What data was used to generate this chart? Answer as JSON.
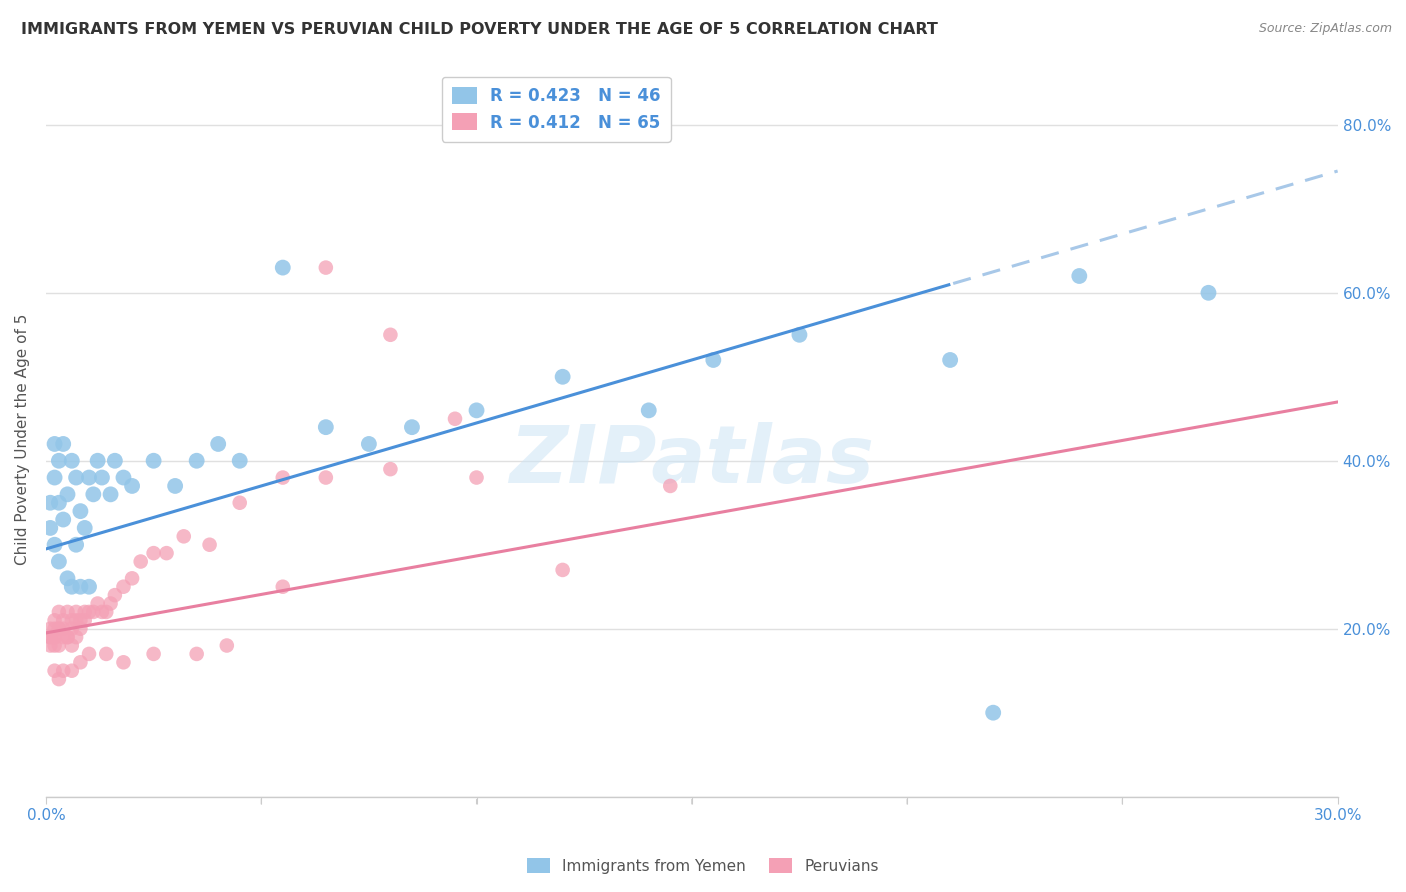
{
  "title": "IMMIGRANTS FROM YEMEN VS PERUVIAN CHILD POVERTY UNDER THE AGE OF 5 CORRELATION CHART",
  "source": "Source: ZipAtlas.com",
  "ylabel": "Child Poverty Under the Age of 5",
  "xlim": [
    0.0,
    0.3
  ],
  "ylim": [
    0.0,
    0.85
  ],
  "yticks": [
    0.0,
    0.2,
    0.4,
    0.6,
    0.8
  ],
  "ytick_labels": [
    "",
    "20.0%",
    "40.0%",
    "60.0%",
    "80.0%"
  ],
  "xticks": [
    0.0,
    0.05,
    0.1,
    0.15,
    0.2,
    0.25,
    0.3
  ],
  "xtick_labels": [
    "0.0%",
    "",
    "",
    "",
    "",
    "",
    "30.0%"
  ],
  "legend1_label": "R = 0.423   N = 46",
  "legend2_label": "R = 0.412   N = 65",
  "scatter1_color": "#92c5e8",
  "scatter2_color": "#f4a0b5",
  "trend1_color": "#4a90d9",
  "trend2_color": "#e87fa0",
  "trend1_dashed_color": "#a8c8e8",
  "background_color": "#ffffff",
  "grid_color": "#e0e0e0",
  "tick_color": "#4a90d9",
  "watermark": "ZIPatlas",
  "trend1_x0": 0.0,
  "trend1_y0": 0.295,
  "trend1_x1": 0.3,
  "trend1_y1": 0.745,
  "trend1_solid_end": 0.21,
  "trend2_x0": 0.0,
  "trend2_y0": 0.195,
  "trend2_x1": 0.3,
  "trend2_y1": 0.47,
  "yemen_x": [
    0.001,
    0.001,
    0.002,
    0.002,
    0.002,
    0.003,
    0.003,
    0.003,
    0.004,
    0.004,
    0.005,
    0.005,
    0.006,
    0.006,
    0.007,
    0.007,
    0.008,
    0.008,
    0.009,
    0.01,
    0.01,
    0.011,
    0.012,
    0.013,
    0.015,
    0.016,
    0.018,
    0.02,
    0.025,
    0.03,
    0.035,
    0.04,
    0.045,
    0.055,
    0.065,
    0.075,
    0.085,
    0.1,
    0.12,
    0.14,
    0.155,
    0.175,
    0.21,
    0.22,
    0.24,
    0.27
  ],
  "yemen_y": [
    0.32,
    0.35,
    0.3,
    0.38,
    0.42,
    0.28,
    0.35,
    0.4,
    0.33,
    0.42,
    0.26,
    0.36,
    0.25,
    0.4,
    0.3,
    0.38,
    0.25,
    0.34,
    0.32,
    0.25,
    0.38,
    0.36,
    0.4,
    0.38,
    0.36,
    0.4,
    0.38,
    0.37,
    0.4,
    0.37,
    0.4,
    0.42,
    0.4,
    0.63,
    0.44,
    0.42,
    0.44,
    0.46,
    0.5,
    0.46,
    0.52,
    0.55,
    0.52,
    0.1,
    0.62,
    0.6
  ],
  "peru_x": [
    0.001,
    0.001,
    0.001,
    0.001,
    0.002,
    0.002,
    0.002,
    0.002,
    0.002,
    0.003,
    0.003,
    0.003,
    0.003,
    0.004,
    0.004,
    0.004,
    0.005,
    0.005,
    0.005,
    0.006,
    0.006,
    0.006,
    0.007,
    0.007,
    0.007,
    0.008,
    0.008,
    0.009,
    0.009,
    0.01,
    0.011,
    0.012,
    0.013,
    0.014,
    0.015,
    0.016,
    0.018,
    0.02,
    0.022,
    0.025,
    0.028,
    0.032,
    0.038,
    0.045,
    0.055,
    0.065,
    0.08,
    0.1,
    0.12,
    0.145,
    0.065,
    0.08,
    0.095,
    0.055,
    0.042,
    0.035,
    0.025,
    0.018,
    0.014,
    0.01,
    0.008,
    0.006,
    0.004,
    0.003,
    0.002
  ],
  "peru_y": [
    0.19,
    0.19,
    0.2,
    0.18,
    0.2,
    0.18,
    0.19,
    0.21,
    0.19,
    0.2,
    0.18,
    0.2,
    0.22,
    0.2,
    0.19,
    0.21,
    0.22,
    0.19,
    0.19,
    0.21,
    0.18,
    0.2,
    0.21,
    0.19,
    0.22,
    0.21,
    0.2,
    0.22,
    0.21,
    0.22,
    0.22,
    0.23,
    0.22,
    0.22,
    0.23,
    0.24,
    0.25,
    0.26,
    0.28,
    0.29,
    0.29,
    0.31,
    0.3,
    0.35,
    0.38,
    0.38,
    0.39,
    0.38,
    0.27,
    0.37,
    0.63,
    0.55,
    0.45,
    0.25,
    0.18,
    0.17,
    0.17,
    0.16,
    0.17,
    0.17,
    0.16,
    0.15,
    0.15,
    0.14,
    0.15
  ]
}
